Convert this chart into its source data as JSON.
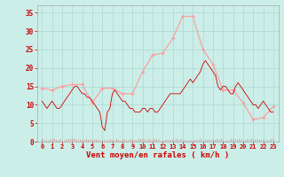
{
  "title": "",
  "xlabel": "Vent moyen/en rafales ( km/h )",
  "background_color": "#cceee8",
  "grid_color": "#aad8d0",
  "line1_color": "#ff9999",
  "line2_color": "#cc0000",
  "xlabel_color": "#cc0000",
  "tick_color": "#cc0000",
  "ylim": [
    0,
    37
  ],
  "yticks": [
    0,
    5,
    10,
    15,
    20,
    25,
    30,
    35
  ],
  "xticks": [
    0,
    1,
    2,
    3,
    4,
    5,
    6,
    7,
    8,
    9,
    10,
    11,
    12,
    13,
    14,
    15,
    16,
    17,
    18,
    19,
    20,
    21,
    22,
    23
  ],
  "x_hours": [
    0,
    1,
    2,
    3,
    4,
    5,
    6,
    7,
    8,
    9,
    10,
    11,
    12,
    13,
    14,
    15,
    16,
    17,
    18,
    19,
    20,
    21,
    22,
    23
  ],
  "rafales": [
    14.5,
    14.0,
    15.0,
    15.5,
    15.5,
    10.5,
    14.5,
    14.5,
    13.0,
    13.0,
    19.0,
    23.5,
    24.0,
    28.0,
    34.0,
    34.0,
    25.0,
    21.0,
    14.0,
    14.0,
    10.5,
    6.0,
    6.5,
    9.5
  ],
  "vent_moyen_x": [
    0,
    0.25,
    0.5,
    0.75,
    1.0,
    1.25,
    1.5,
    1.75,
    2.0,
    2.25,
    2.5,
    2.75,
    3.0,
    3.25,
    3.5,
    3.75,
    4.0,
    4.25,
    4.5,
    4.75,
    5.0,
    5.25,
    5.5,
    5.75,
    6.0,
    6.25,
    6.5,
    6.75,
    7.0,
    7.25,
    7.5,
    7.75,
    8.0,
    8.25,
    8.5,
    8.75,
    9.0,
    9.25,
    9.5,
    9.75,
    10.0,
    10.25,
    10.5,
    10.75,
    11.0,
    11.25,
    11.5,
    11.75,
    12.0,
    12.25,
    12.5,
    12.75,
    13.0,
    13.25,
    13.5,
    13.75,
    14.0,
    14.25,
    14.5,
    14.75,
    15.0,
    15.25,
    15.5,
    15.75,
    16.0,
    16.25,
    16.5,
    16.75,
    17.0,
    17.25,
    17.5,
    17.75,
    18.0,
    18.25,
    18.5,
    18.75,
    19.0,
    19.25,
    19.5,
    19.75,
    20.0,
    20.25,
    20.5,
    20.75,
    21.0,
    21.25,
    21.5,
    21.75,
    22.0,
    22.25,
    22.5,
    22.75,
    23.0
  ],
  "vent_moyen_y": [
    11,
    10,
    9,
    10,
    11,
    10,
    9,
    9,
    10,
    11,
    12,
    13,
    14,
    15,
    15,
    14,
    13,
    13,
    12,
    12,
    11,
    10,
    9,
    8,
    4,
    3,
    8,
    9,
    13,
    14,
    13,
    12,
    11,
    11,
    10,
    9,
    9,
    8,
    8,
    8,
    9,
    9,
    8,
    9,
    9,
    8,
    8,
    9,
    10,
    11,
    12,
    13,
    13,
    13,
    13,
    13,
    14,
    15,
    16,
    17,
    16,
    17,
    18,
    19,
    21,
    22,
    21,
    20,
    19,
    18,
    15,
    14,
    15,
    15,
    14,
    13,
    13,
    15,
    16,
    15,
    14,
    13,
    12,
    11,
    10,
    10,
    9,
    10,
    11,
    10,
    9,
    8,
    8
  ],
  "wind_dir_y": 0.5
}
